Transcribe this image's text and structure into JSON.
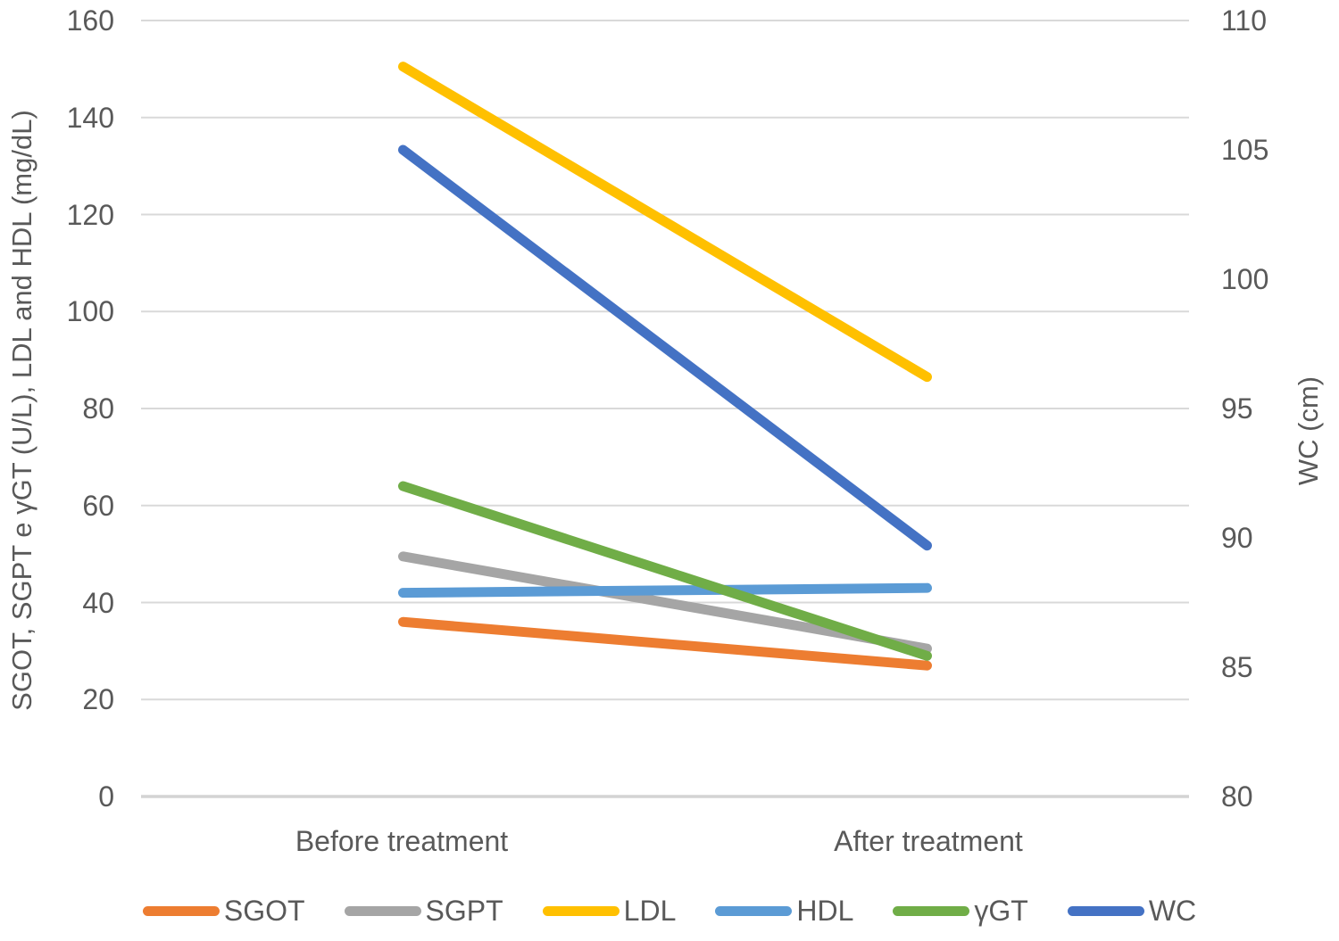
{
  "chart_data": {
    "type": "line",
    "title": "",
    "categories": [
      "Before treatment",
      "After treatment"
    ],
    "left_axis": {
      "label": "SGOT, SGPT e γGT (U/L), LDL and HDL (mg/dL)",
      "min": 0,
      "max": 160,
      "step": 20,
      "ticks": [
        0,
        20,
        40,
        60,
        80,
        100,
        120,
        140,
        160
      ]
    },
    "right_axis": {
      "label": "WC (cm)",
      "min": 80,
      "max": 110,
      "step": 5,
      "ticks": [
        80,
        85,
        90,
        95,
        100,
        105,
        110
      ]
    },
    "series": [
      {
        "name": "SGOT",
        "axis": "left",
        "color": "#ED7D31",
        "values": [
          36,
          27
        ]
      },
      {
        "name": "SGPT",
        "axis": "left",
        "color": "#A5A5A5",
        "values": [
          49.5,
          30.5
        ]
      },
      {
        "name": "LDL",
        "axis": "left",
        "color": "#FFC000",
        "values": [
          150.5,
          86.5
        ]
      },
      {
        "name": "HDL",
        "axis": "left",
        "color": "#5B9BD5",
        "values": [
          42,
          43
        ]
      },
      {
        "name": "γGT",
        "axis": "left",
        "color": "#70AD47",
        "values": [
          64,
          29
        ]
      },
      {
        "name": "WC",
        "axis": "right",
        "color": "#4472C4",
        "values": [
          105,
          89.7
        ]
      }
    ],
    "grid": true,
    "legend_position": "bottom",
    "colors": {
      "gridline": "#D9D9D9",
      "baseline": "#D3D3D3",
      "text": "#595959",
      "background": "#FFFFFF"
    }
  }
}
